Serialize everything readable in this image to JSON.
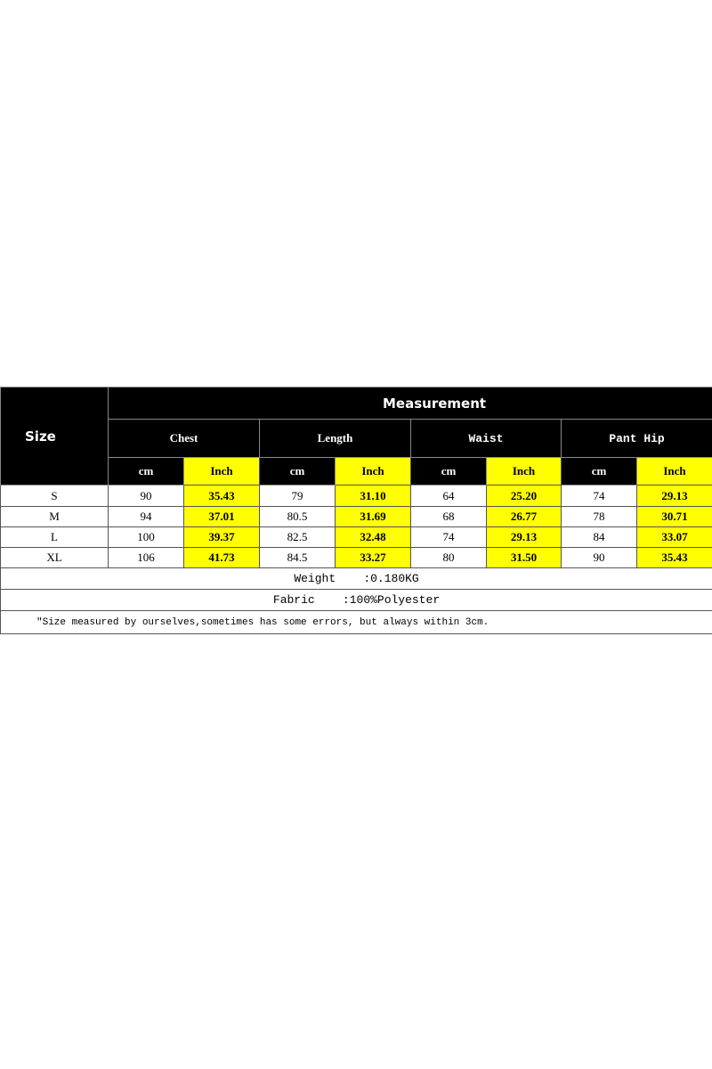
{
  "header": {
    "size_label": "Size",
    "measurement_label": "Measurement"
  },
  "groups": [
    "Chest",
    "Length",
    "Waist",
    "Pant Hip"
  ],
  "units": {
    "cm": "cm",
    "inch": "Inch"
  },
  "rows": [
    {
      "size": "S",
      "values": [
        "90",
        "35.43",
        "79",
        "31.10",
        "64",
        "25.20",
        "74",
        "29.13"
      ]
    },
    {
      "size": "M",
      "values": [
        "94",
        "37.01",
        "80.5",
        "31.69",
        "68",
        "26.77",
        "78",
        "30.71"
      ]
    },
    {
      "size": "L",
      "values": [
        "100",
        "39.37",
        "82.5",
        "32.48",
        "74",
        "29.13",
        "84",
        "33.07"
      ]
    },
    {
      "size": "XL",
      "values": [
        "106",
        "41.73",
        "84.5",
        "33.27",
        "80",
        "31.50",
        "90",
        "35.43"
      ]
    }
  ],
  "weight": "Weight    :0.180KG",
  "fabric": "Fabric    :100%Polyester",
  "note": "\"Size measured by ourselves,sometimes has some errors, but always within 3cm.",
  "colors": {
    "header_bg": "#000000",
    "inch_bg": "#ffff00"
  }
}
